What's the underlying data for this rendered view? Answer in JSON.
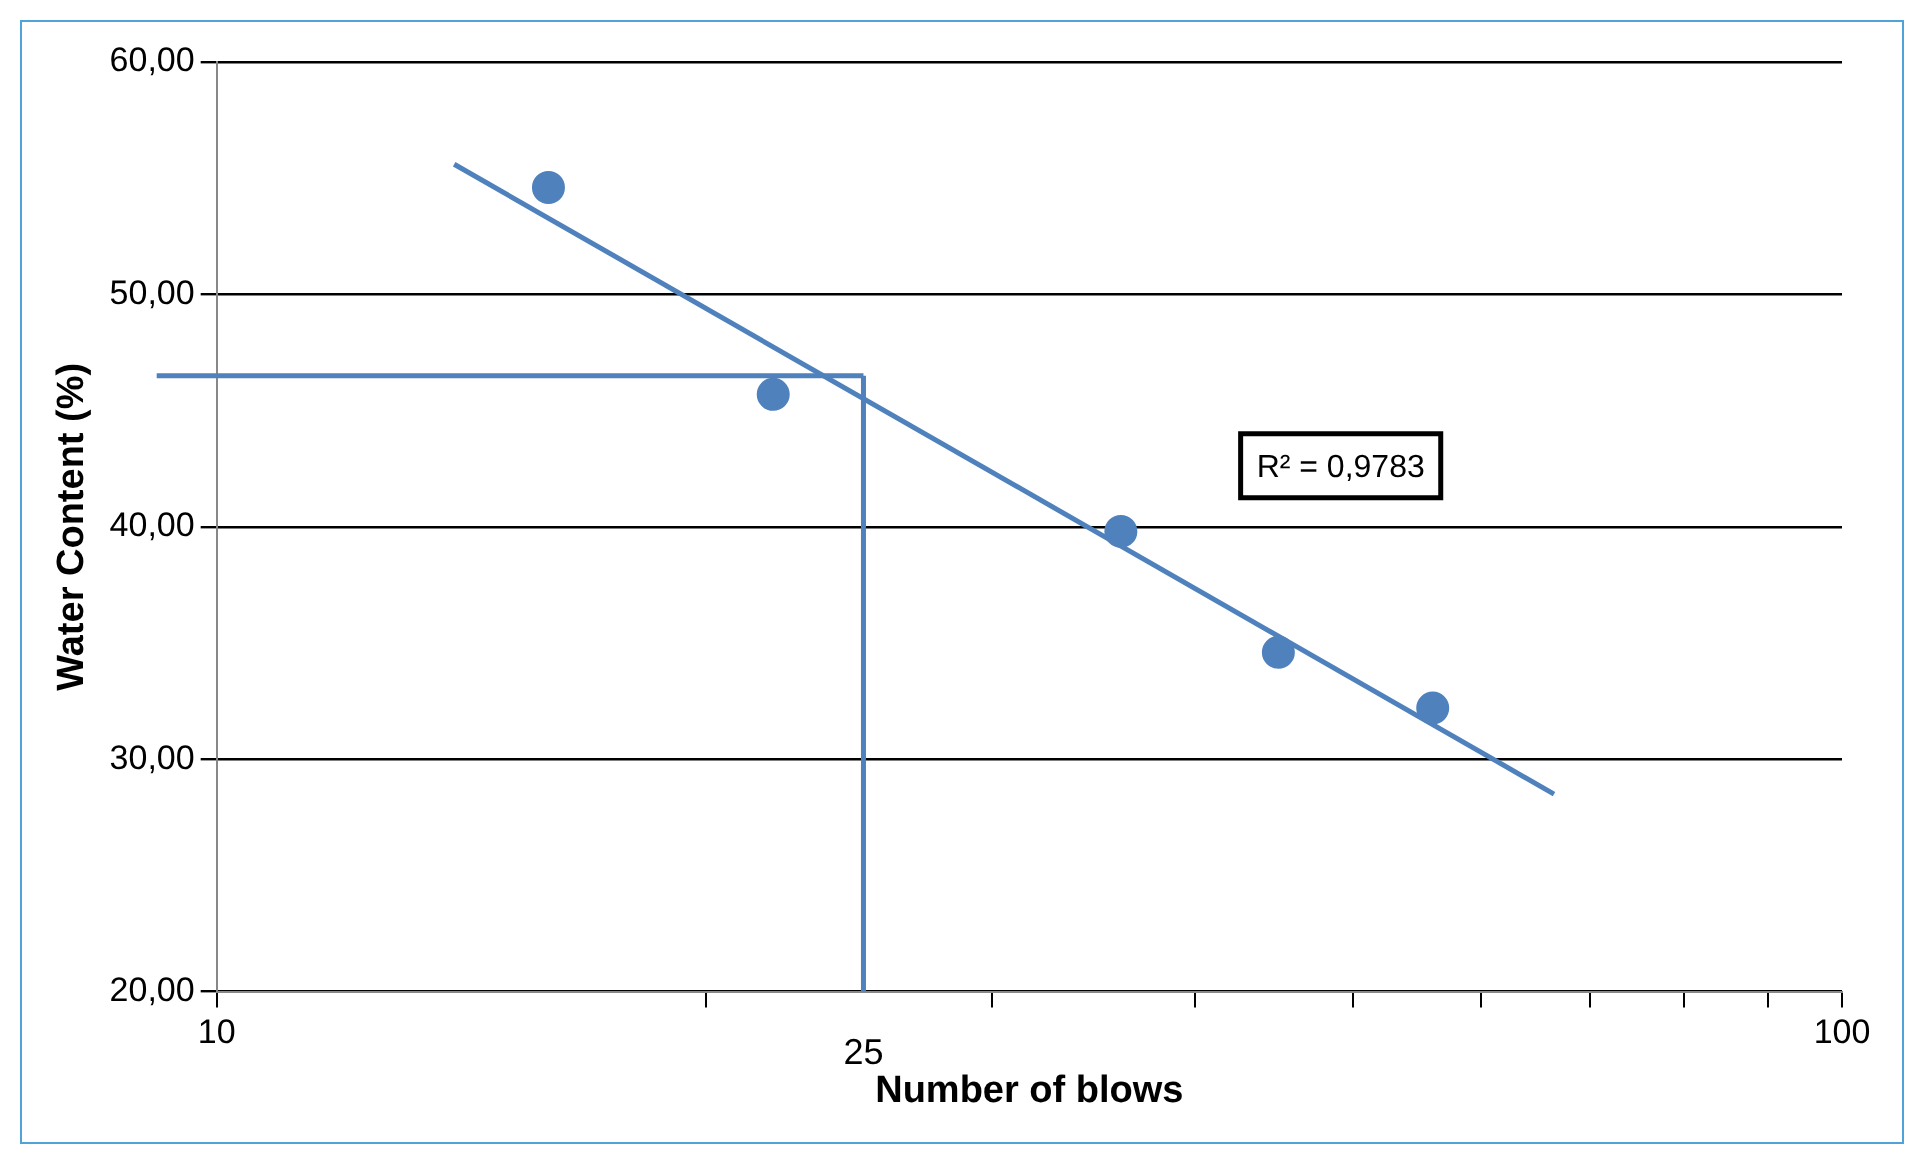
{
  "chart_data": {
    "type": "scatter",
    "xlabel": "Number of blows",
    "ylabel": "Water Content (%)",
    "log": "x",
    "xlim": [
      10,
      100
    ],
    "ylim": [
      20,
      60
    ],
    "xticks": [
      10,
      {
        "value": 20,
        "label": null
      },
      {
        "value": 30,
        "label": null
      },
      {
        "value": 40,
        "label": null
      },
      {
        "value": 50,
        "label": null
      },
      {
        "value": 60,
        "label": null
      },
      {
        "value": 70,
        "label": null
      },
      {
        "value": 80,
        "label": null
      },
      {
        "value": 90,
        "label": null
      },
      100
    ],
    "yticks": [
      {
        "value": 20,
        "label": "20,00"
      },
      {
        "value": 30,
        "label": "30,00"
      },
      {
        "value": 40,
        "label": "40,00"
      },
      {
        "value": 50,
        "label": "50,00"
      },
      {
        "value": 60,
        "label": "60,00"
      }
    ],
    "grid": "y",
    "legend": false,
    "marker": "circle",
    "series": [
      {
        "type": "scatter",
        "color": "#4f81bd",
        "x": [
          16,
          22,
          36,
          45,
          56
        ],
        "values": [
          54.6,
          45.7,
          39.8,
          34.6,
          32.2
        ]
      },
      {
        "type": "line",
        "color": "#4f81bd",
        "x": [
          14,
          66.5
        ],
        "values": [
          55.6,
          28.5
        ],
        "marker": "none",
        "line_style": "solid"
      }
    ],
    "ref_lines": [
      {
        "axis": "y",
        "value": 46.5,
        "label": null,
        "color": "#4f81bd"
      },
      {
        "axis": "x",
        "value": 25,
        "label": "25",
        "color": "#4f81bd"
      }
    ],
    "annotations": [
      "R² = 0,9783"
    ]
  }
}
